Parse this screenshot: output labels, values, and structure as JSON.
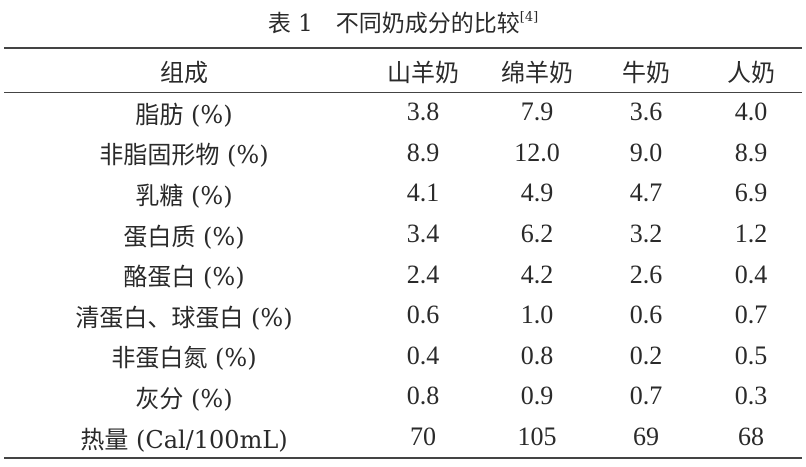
{
  "title": {
    "text": "表 1　不同奶成分的比较",
    "ref": "[4]"
  },
  "table": {
    "headers": [
      "组成",
      "山羊奶",
      "绵羊奶",
      "牛奶",
      "人奶"
    ],
    "rows": [
      [
        "脂肪 (%)",
        "3.8",
        "7.9",
        "3.6",
        "4.0"
      ],
      [
        "非脂固形物 (%)",
        "8.9",
        "12.0",
        "9.0",
        "8.9"
      ],
      [
        "乳糖 (%)",
        "4.1",
        "4.9",
        "4.7",
        "6.9"
      ],
      [
        "蛋白质 (%)",
        "3.4",
        "6.2",
        "3.2",
        "1.2"
      ],
      [
        "酪蛋白 (%)",
        "2.4",
        "4.2",
        "2.6",
        "0.4"
      ],
      [
        "清蛋白、球蛋白 (%)",
        "0.6",
        "1.0",
        "0.6",
        "0.7"
      ],
      [
        "非蛋白氮 (%)",
        "0.4",
        "0.8",
        "0.2",
        "0.5"
      ],
      [
        "灰分 (%)",
        "0.8",
        "0.9",
        "0.7",
        "0.3"
      ],
      [
        "热量 (Cal/100mL)",
        "70",
        "105",
        "69",
        "68"
      ]
    ]
  }
}
